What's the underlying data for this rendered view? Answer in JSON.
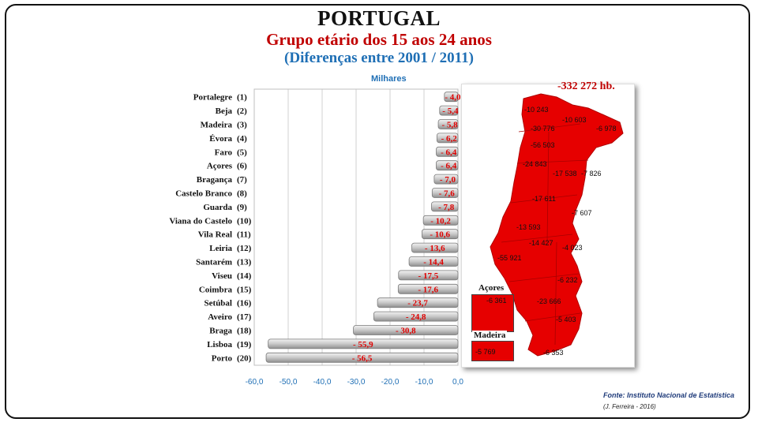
{
  "header": {
    "title": "PORTUGAL",
    "subtitle": "Grupo etário dos 15 aos 24 anos",
    "subtitle2": "(Diferenças entre 2001 / 2011)"
  },
  "chart_data": {
    "type": "bar",
    "orientation": "horizontal",
    "unit_label": "Milhares",
    "categories": [
      "Portalegre",
      "Beja",
      "Madeira",
      "Évora",
      "Faro",
      "Açores",
      "Bragança",
      "Castelo Branco",
      "Guarda",
      "Viana do Castelo",
      "Vila Real",
      "Leiria",
      "Santarém",
      "Viseu",
      "Coimbra",
      "Setúbal",
      "Aveiro",
      "Braga",
      "Lisboa",
      "Porto"
    ],
    "ranks": [
      "(1)",
      "(2)",
      "(3)",
      "(4)",
      "(5)",
      "(6)",
      "(7)",
      "(8)",
      "(9)",
      "(10)",
      "(11)",
      "(12)",
      "(13)",
      "(14)",
      "(15)",
      "(16)",
      "(17)",
      "(18)",
      "(19)",
      "(20)"
    ],
    "values": [
      -4.0,
      -5.4,
      -5.8,
      -6.2,
      -6.4,
      -6.4,
      -7.0,
      -7.6,
      -7.8,
      -10.2,
      -10.6,
      -13.6,
      -14.4,
      -17.5,
      -17.6,
      -23.7,
      -24.8,
      -30.8,
      -55.9,
      -56.5
    ],
    "data_labels": [
      "- 4,0",
      "- 5,4",
      "- 5,8",
      "- 6,2",
      "- 6,4",
      "- 6,4",
      "- 7,0",
      "- 7,6",
      "- 7,8",
      "- 10,2",
      "- 10,6",
      "- 13,6",
      "- 14,4",
      "- 17,5",
      "- 17,6",
      "- 23,7",
      "- 24,8",
      "- 30,8",
      "- 55,9",
      "- 56,5"
    ],
    "xlim": [
      -60,
      0
    ],
    "x_ticks": [
      "-60,0",
      "-50,0",
      "-40,0",
      "-30,0",
      "-20,0",
      "-10,0",
      "0,0"
    ],
    "grid": true,
    "bar_color": "#c8c8c8",
    "label_color": "#e00000"
  },
  "map": {
    "total": "-332 272 hb.",
    "fill_color": "#e60000",
    "district_values": [
      "-10 243",
      "-10 603",
      "-30 776",
      "-6 978",
      "-56 503",
      "-24 843",
      "-17 538",
      "-7 826",
      "-17 611",
      "-7 607",
      "-13 593",
      "-14 427",
      "-4 023",
      "-55 921",
      "-6 232",
      "-23 666",
      "-5 403",
      "-6 353"
    ],
    "acores_label": "Açores",
    "acores_value": "-6 361",
    "madeira_label": "Madeira",
    "madeira_value": "-5 769"
  },
  "footer": {
    "source": "Fonte: Instituto Nacional de Estatística",
    "author": "(J. Ferreira - 2016)"
  }
}
